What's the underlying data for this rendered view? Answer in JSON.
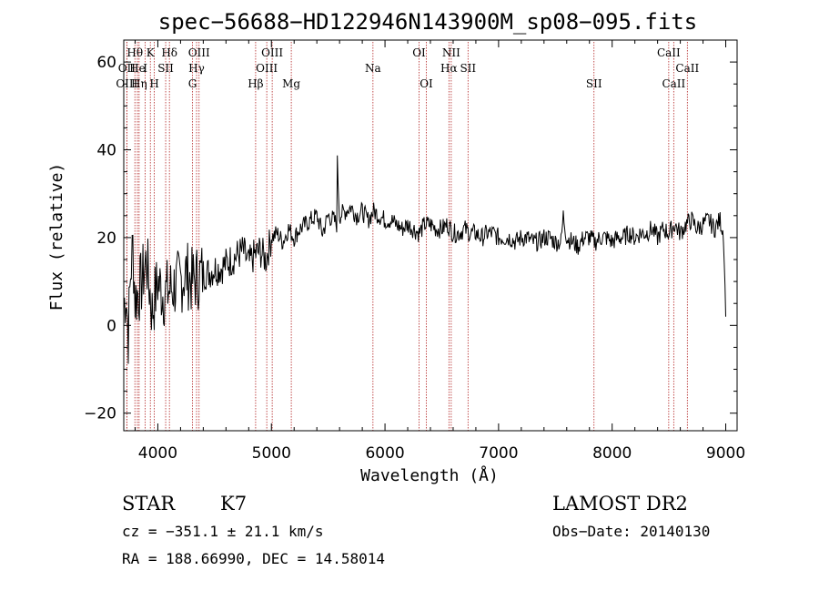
{
  "chart_data": {
    "type": "line",
    "title": "spec−56688−HD122946N143900M_sp08−095.fits",
    "xlabel": "Wavelength (Å)",
    "ylabel": "Flux (relative)",
    "xlim": [
      3700,
      9100
    ],
    "ylim": [
      -24,
      65
    ],
    "x_ticks": [
      4000,
      5000,
      6000,
      7000,
      8000,
      9000
    ],
    "y_ticks": [
      -20,
      0,
      20,
      40,
      60
    ],
    "x_tick_labels": [
      "4000",
      "5000",
      "6000",
      "7000",
      "8000",
      "9000"
    ],
    "y_tick_labels": [
      "−20",
      "0",
      "20",
      "40",
      "60"
    ],
    "series": [
      {
        "values_description_free": true,
        "x": [
          3700,
          3720,
          3740,
          3760,
          3780,
          3800,
          3850,
          3900,
          3950,
          4000,
          4050,
          4100,
          4150,
          4200,
          4250,
          4300,
          4350,
          4400,
          4450,
          4500,
          4550,
          4600,
          4650,
          4700,
          4750,
          4800,
          4850,
          4900,
          4950,
          5000,
          5050,
          5100,
          5150,
          5200,
          5250,
          5300,
          5350,
          5400,
          5450,
          5500,
          5550,
          5575,
          5580,
          5600,
          5650,
          5700,
          5750,
          5800,
          5850,
          5900,
          5950,
          6000,
          6050,
          6100,
          6150,
          6200,
          6250,
          6300,
          6350,
          6400,
          6450,
          6500,
          6550,
          6600,
          6650,
          6700,
          6750,
          6800,
          6850,
          6900,
          6950,
          7000,
          7050,
          7100,
          7150,
          7200,
          7250,
          7300,
          7350,
          7400,
          7450,
          7500,
          7550,
          7570,
          7600,
          7650,
          7700,
          7750,
          7800,
          7850,
          7900,
          7950,
          8000,
          8050,
          8100,
          8150,
          8200,
          8250,
          8300,
          8350,
          8400,
          8450,
          8500,
          8550,
          8600,
          8650,
          8700,
          8750,
          8800,
          8850,
          8900,
          8950,
          8980,
          9000
        ],
        "y": [
          4,
          8,
          -2,
          12,
          18,
          6,
          9,
          15,
          3,
          10,
          7,
          8,
          9,
          10,
          12,
          10,
          11,
          12,
          12,
          13,
          13,
          14,
          15,
          16,
          17,
          14,
          16,
          17,
          15,
          20,
          21,
          19,
          22,
          20,
          22,
          23,
          24,
          25,
          21,
          25,
          24,
          23,
          37,
          25,
          26,
          27,
          25,
          26,
          24,
          26,
          25,
          24,
          24,
          23,
          22,
          23,
          22,
          21,
          23,
          23,
          22,
          22,
          23,
          21,
          21,
          22,
          21,
          21,
          20,
          21,
          21,
          20,
          20,
          20,
          19,
          20,
          20,
          19,
          19,
          20,
          20,
          19,
          19,
          25,
          20,
          19,
          18,
          20,
          20,
          19,
          20,
          20,
          19,
          20,
          20,
          21,
          20,
          21,
          21,
          22,
          20,
          22,
          21,
          23,
          21,
          23,
          24,
          22,
          23,
          24,
          22,
          24,
          21,
          2
        ]
      }
    ],
    "lines": [
      {
        "name": "Hθ",
        "x": 3798,
        "row": 0
      },
      {
        "name": "OII",
        "x": 3727,
        "row": 1
      },
      {
        "name": "OIII",
        "x": 3727,
        "row": 2
      },
      {
        "name": "He",
        "x": 3820,
        "row": 1
      },
      {
        "name": "Hη",
        "x": 3835,
        "row": 2
      },
      {
        "name": "K",
        "x": 3934,
        "row": 0
      },
      {
        "name": "H",
        "x": 3969,
        "row": 2
      },
      {
        "name": "I",
        "x": 3889,
        "row": 1
      },
      {
        "name": "SII",
        "x": 4069,
        "row": 1
      },
      {
        "name": "Hδ",
        "x": 4102,
        "row": 0
      },
      {
        "name": "OIII",
        "x": 4363,
        "row": 0
      },
      {
        "name": "Hγ",
        "x": 4341,
        "row": 1
      },
      {
        "name": "G",
        "x": 4305,
        "row": 2
      },
      {
        "name": "Hβ",
        "x": 4861,
        "row": 2
      },
      {
        "name": "OIII",
        "x": 5007,
        "row": 0
      },
      {
        "name": "OIII",
        "x": 4959,
        "row": 1
      },
      {
        "name": "Mg",
        "x": 5175,
        "row": 2
      },
      {
        "name": "Na",
        "x": 5894,
        "row": 1
      },
      {
        "name": "OI",
        "x": 6300,
        "row": 0
      },
      {
        "name": "OI",
        "x": 6364,
        "row": 2
      },
      {
        "name": "NII",
        "x": 6583,
        "row": 0
      },
      {
        "name": "Hα",
        "x": 6563,
        "row": 1
      },
      {
        "name": "SII",
        "x": 6731,
        "row": 1
      },
      {
        "name": "SII",
        "x": 7840,
        "row": 2
      },
      {
        "name": "CaII",
        "x": 8498,
        "row": 0
      },
      {
        "name": "CaII",
        "x": 8542,
        "row": 2
      },
      {
        "name": "CaII",
        "x": 8662,
        "row": 1
      }
    ],
    "grid": false,
    "legend": "none"
  },
  "info": {
    "object_class": "STAR",
    "subclass": "K7",
    "survey": "LAMOST DR2",
    "cz": "cz = −351.1 ± 21.1 km/s",
    "obs_date": "Obs−Date: 20140130",
    "coords": "RA = 188.66990, DEC =  14.58014"
  },
  "colors": {
    "spectrum": "#000000",
    "line_markers": "#b22222",
    "frame": "#000000"
  }
}
